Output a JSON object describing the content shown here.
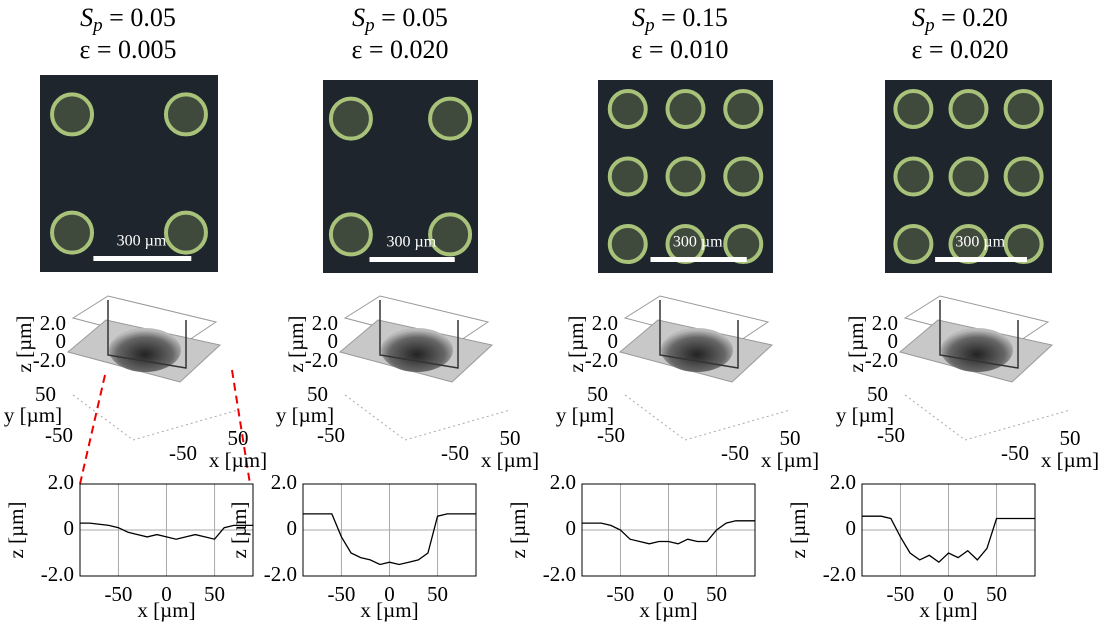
{
  "panels": [
    {
      "sp": {
        "symbol": "S",
        "subscript": "p",
        "rest": " = 0.05"
      },
      "eps": "ε = 0.005"
    },
    {
      "sp": {
        "symbol": "S",
        "subscript": "p",
        "rest": " = 0.05"
      },
      "eps": "ε = 0.020"
    },
    {
      "sp": {
        "symbol": "S",
        "subscript": "p",
        "rest": " = 0.15"
      },
      "eps": "ε = 0.010"
    },
    {
      "sp": {
        "symbol": "S",
        "subscript": "p",
        "rest": " = 0.20"
      },
      "eps": "ε = 0.020"
    }
  ],
  "scale_bar": "300 µm",
  "surface_axes": {
    "zticks": [
      {
        "value": 2,
        "label": "2.0"
      },
      0,
      {
        "value": -2,
        "label": "-2.0"
      }
    ],
    "yticks": [
      50,
      -50
    ],
    "xticks": [
      50,
      -50
    ],
    "zlabel": "z [µm]",
    "ylabel": "y [µm]",
    "xlabel": "x [µm]"
  },
  "chart_data": [
    {
      "type": "line",
      "x": [
        -90,
        -80,
        -70,
        -60,
        -50,
        -40,
        -30,
        -20,
        -10,
        0,
        10,
        20,
        30,
        40,
        50,
        60,
        70,
        80,
        90
      ],
      "values": [
        0.3,
        0.3,
        0.25,
        0.2,
        0.1,
        -0.1,
        -0.2,
        -0.3,
        -0.2,
        -0.3,
        -0.4,
        -0.3,
        -0.2,
        -0.3,
        -0.4,
        0.1,
        0.2,
        0.2,
        0.2
      ],
      "color": "#000000",
      "xlim": [
        -90,
        90
      ],
      "ylim": [
        -2,
        2
      ],
      "xticks": [
        -50,
        0,
        50
      ],
      "yticks": [
        {
          "value": 2,
          "label": "2.0"
        },
        0,
        {
          "value": -2,
          "label": "-2.0"
        }
      ],
      "xlabel": "x [µm]",
      "ylabel": "z [µm]",
      "grid": true
    },
    {
      "type": "line",
      "x": [
        -90,
        -80,
        -70,
        -60,
        -50,
        -40,
        -30,
        -20,
        -10,
        0,
        10,
        20,
        30,
        40,
        50,
        60,
        70,
        80,
        90
      ],
      "values": [
        0.7,
        0.7,
        0.7,
        0.7,
        -0.3,
        -1.0,
        -1.2,
        -1.3,
        -1.5,
        -1.4,
        -1.5,
        -1.4,
        -1.3,
        -1.0,
        0.6,
        0.7,
        0.7,
        0.7,
        0.7
      ],
      "color": "#000000",
      "xlim": [
        -90,
        90
      ],
      "ylim": [
        -2,
        2
      ],
      "xticks": [
        -50,
        0,
        50
      ],
      "yticks": [
        {
          "value": 2,
          "label": "2.0"
        },
        0,
        {
          "value": -2,
          "label": "-2.0"
        }
      ],
      "xlabel": "x [µm]",
      "ylabel": "z [µm]",
      "grid": true
    },
    {
      "type": "line",
      "x": [
        -90,
        -80,
        -70,
        -60,
        -50,
        -40,
        -30,
        -20,
        -10,
        0,
        10,
        20,
        30,
        40,
        50,
        60,
        70,
        80,
        90
      ],
      "values": [
        0.3,
        0.3,
        0.3,
        0.2,
        0.0,
        -0.4,
        -0.5,
        -0.6,
        -0.5,
        -0.5,
        -0.6,
        -0.4,
        -0.5,
        -0.5,
        0.0,
        0.3,
        0.4,
        0.4,
        0.4
      ],
      "color": "#000000",
      "xlim": [
        -90,
        90
      ],
      "ylim": [
        -2,
        2
      ],
      "xticks": [
        -50,
        0,
        50
      ],
      "yticks": [
        {
          "value": 2,
          "label": "2.0"
        },
        0,
        {
          "value": -2,
          "label": "-2.0"
        }
      ],
      "xlabel": "x [µm]",
      "ylabel": "z [µm]",
      "grid": true
    },
    {
      "type": "line",
      "x": [
        -90,
        -80,
        -70,
        -60,
        -50,
        -40,
        -30,
        -20,
        -10,
        0,
        10,
        20,
        30,
        40,
        50,
        60,
        70,
        80,
        90
      ],
      "values": [
        0.6,
        0.6,
        0.6,
        0.5,
        -0.3,
        -1.0,
        -1.3,
        -1.1,
        -1.4,
        -1.0,
        -1.2,
        -0.9,
        -1.3,
        -0.8,
        0.5,
        0.5,
        0.5,
        0.5,
        0.5
      ],
      "color": "#000000",
      "xlim": [
        -90,
        90
      ],
      "ylim": [
        -2,
        2
      ],
      "xticks": [
        -50,
        0,
        50
      ],
      "yticks": [
        {
          "value": 2,
          "label": "2.0"
        },
        0,
        {
          "value": -2,
          "label": "-2.0"
        }
      ],
      "xlabel": "x [µm]",
      "ylabel": "z [µm]",
      "grid": true
    }
  ]
}
